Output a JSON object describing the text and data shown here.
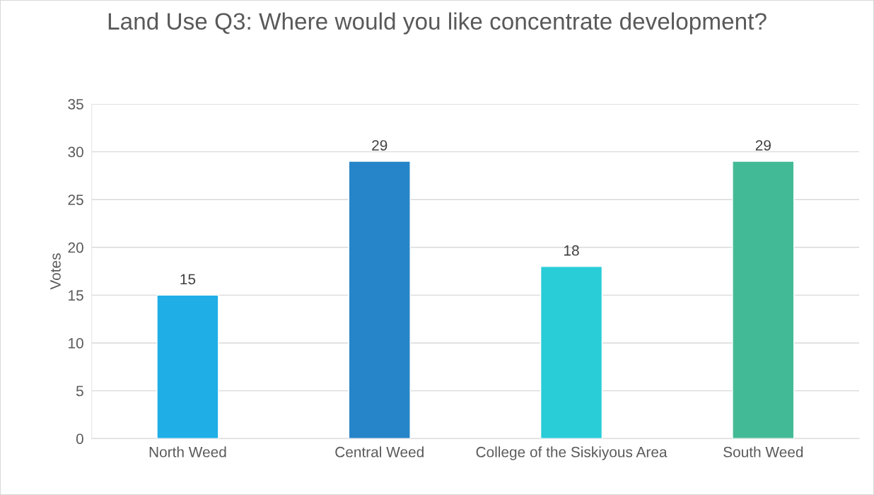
{
  "chart_data": {
    "type": "bar",
    "title": "Land Use Q3: Where would you like concentrate development?",
    "ylabel": "Votes",
    "categories": [
      "North Weed",
      "Central Weed",
      "College of the Siskiyous Area",
      "South Weed"
    ],
    "values": [
      15,
      29,
      18,
      29
    ],
    "colors": [
      "#1faee6",
      "#2684c8",
      "#29cdd8",
      "#43ba96"
    ],
    "ylim": [
      0,
      35
    ],
    "yticks": [
      0,
      5,
      10,
      15,
      20,
      25,
      30,
      35
    ],
    "grid": "y",
    "data_labels": true,
    "legend": false
  }
}
